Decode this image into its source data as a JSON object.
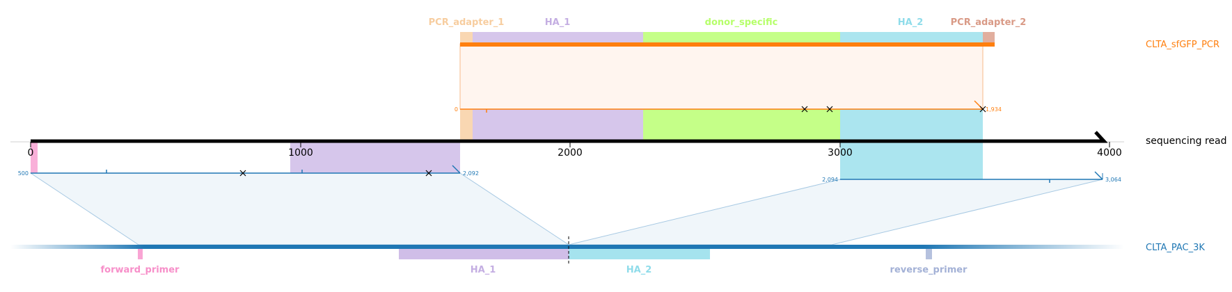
{
  "colors": {
    "pcr_adapter": "#f7cd9f",
    "ha1": "#c4aee2",
    "donor": "#b6ff6a",
    "ha2": "#8fdcea",
    "pcr_adapter_2": "#d99a86",
    "forward_primer": "#f78fc9",
    "reverse_primer": "#a3b1d6",
    "orange": "#ff7f0e",
    "blue": "#1f77b4"
  },
  "top_features": [
    {
      "label": "PCR_adapter_1",
      "color": "#f7cd9f"
    },
    {
      "label": "HA_1",
      "color": "#c4aee2"
    },
    {
      "label": "donor_specific",
      "color": "#b6ff6a"
    },
    {
      "label": "HA_2",
      "color": "#8fdcea"
    },
    {
      "label": "PCR_adapter_2",
      "color": "#d99a86"
    }
  ],
  "bottom_features": [
    {
      "label": "forward_primer",
      "color": "#f78fc9"
    },
    {
      "label": "HA_1",
      "color": "#c4aee2"
    },
    {
      "label": "HA_2",
      "color": "#8fdcea"
    },
    {
      "label": "reverse_primer",
      "color": "#a3b1d6"
    }
  ],
  "tracks": {
    "top": "CLTA_sfGFP_PCR",
    "read": "sequencing read",
    "bottom": "CLTA_PAC_3K"
  },
  "axis": {
    "min": 0,
    "max": 4000,
    "ticks": [
      {
        "value": 0,
        "label": "0"
      },
      {
        "value": 1000,
        "label": "1000"
      },
      {
        "value": 2000,
        "label": "2000"
      },
      {
        "value": 3000,
        "label": "3000"
      },
      {
        "value": 4000,
        "label": "4000"
      }
    ]
  },
  "alignments": {
    "pcr": {
      "start_label": "0",
      "end_label": "1,934"
    },
    "pac_left": {
      "start_label": "500",
      "end_label": "2,092"
    },
    "pac_right": {
      "start_label": "2,094",
      "end_label": "3,064"
    }
  }
}
